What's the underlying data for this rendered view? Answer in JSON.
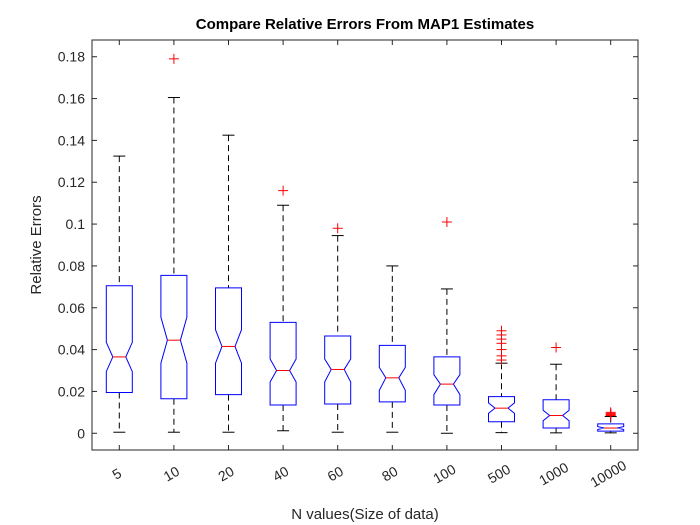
{
  "chart_data": {
    "type": "boxplot",
    "title": "Compare Relative Errors From MAP1 Estimates",
    "xlabel": "N values(Size of data)",
    "ylabel": "Relative Errors",
    "ylim": [
      -0.008,
      0.188
    ],
    "yticks": [
      0,
      0.02,
      0.04,
      0.06,
      0.08,
      0.1,
      0.12,
      0.14,
      0.16,
      0.18
    ],
    "ytick_labels": [
      "0",
      "0.02",
      "0.04",
      "0.06",
      "0.08",
      "0.1",
      "0.12",
      "0.14",
      "0.16",
      "0.18"
    ],
    "grid": false,
    "notched": true,
    "box_color": "#0000ff",
    "median_color": "#ff0000",
    "outlier_color": "#ff0000",
    "whisker_color": "#000000",
    "categories": [
      "5",
      "10",
      "20",
      "40",
      "60",
      "80",
      "100",
      "500",
      "1000",
      "10000"
    ],
    "boxes": [
      {
        "min": 0.0005,
        "q1": 0.0195,
        "median": 0.0365,
        "q3": 0.0705,
        "max": 0.1325,
        "notch_low": 0.0295,
        "notch_high": 0.0435,
        "outliers": []
      },
      {
        "min": 0.0005,
        "q1": 0.0165,
        "median": 0.0445,
        "q3": 0.0755,
        "max": 0.1605,
        "notch_low": 0.0335,
        "notch_high": 0.0555,
        "outliers": [
          0.179
        ]
      },
      {
        "min": 0.0005,
        "q1": 0.0185,
        "median": 0.0415,
        "q3": 0.0695,
        "max": 0.1425,
        "notch_low": 0.0335,
        "notch_high": 0.0495,
        "outliers": []
      },
      {
        "min": 0.0012,
        "q1": 0.0135,
        "median": 0.03,
        "q3": 0.053,
        "max": 0.109,
        "notch_low": 0.0245,
        "notch_high": 0.0355,
        "outliers": [
          0.116
        ]
      },
      {
        "min": 0.0005,
        "q1": 0.014,
        "median": 0.0305,
        "q3": 0.0465,
        "max": 0.0945,
        "notch_low": 0.0245,
        "notch_high": 0.0355,
        "outliers": [
          0.098
        ]
      },
      {
        "min": 0.0005,
        "q1": 0.015,
        "median": 0.0265,
        "q3": 0.042,
        "max": 0.08,
        "notch_low": 0.0205,
        "notch_high": 0.0315,
        "outliers": []
      },
      {
        "min": 0.0,
        "q1": 0.0135,
        "median": 0.0235,
        "q3": 0.0365,
        "max": 0.069,
        "notch_low": 0.0185,
        "notch_high": 0.028,
        "outliers": [
          0.101
        ]
      },
      {
        "min": 0.0003,
        "q1": 0.0055,
        "median": 0.012,
        "q3": 0.0175,
        "max": 0.0335,
        "notch_low": 0.0095,
        "notch_high": 0.0145,
        "outliers": [
          0.035,
          0.037,
          0.04,
          0.043,
          0.045,
          0.047,
          0.049
        ]
      },
      {
        "min": 0.0002,
        "q1": 0.0025,
        "median": 0.0085,
        "q3": 0.016,
        "max": 0.033,
        "notch_low": 0.006,
        "notch_high": 0.011,
        "outliers": [
          0.041
        ]
      },
      {
        "min": 0.0002,
        "q1": 0.001,
        "median": 0.0025,
        "q3": 0.0045,
        "max": 0.008,
        "notch_low": 0.0018,
        "notch_high": 0.0032,
        "outliers": [
          0.0085,
          0.009,
          0.0095,
          0.01
        ]
      }
    ]
  }
}
